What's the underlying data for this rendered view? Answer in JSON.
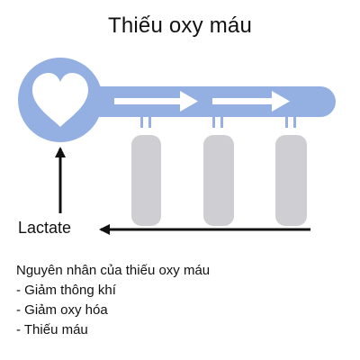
{
  "title": "Thiếu oxy máu",
  "lactate_label": "Lactate",
  "causes": {
    "heading": "Nguyên nhân của thiếu oxy máu",
    "items": [
      "- Giảm thông khí",
      "- Giảm oxy hóa",
      "- Thiếu máu"
    ]
  },
  "colors": {
    "vessel": "#94afe2",
    "heart": "#ffffff",
    "tissue": "#cfcfd3",
    "arrow": "#111111"
  },
  "icons": {
    "heart": "heart-icon"
  }
}
